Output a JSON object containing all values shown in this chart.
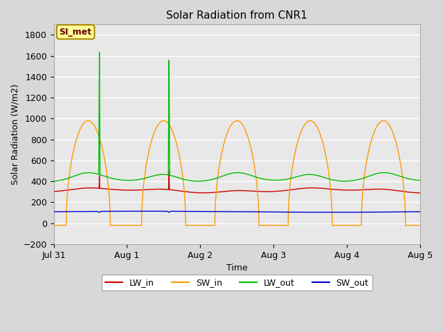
{
  "title": "Solar Radiation from CNR1",
  "xlabel": "Time",
  "ylabel": "Solar Radiation (W/m2)",
  "ylim": [
    -200,
    1900
  ],
  "yticks": [
    -200,
    0,
    200,
    400,
    600,
    800,
    1000,
    1200,
    1400,
    1600,
    1800
  ],
  "background_color": "#e8e8e8",
  "grid_color": "#ffffff",
  "legend_labels": [
    "LW_in",
    "SW_in",
    "LW_out",
    "SW_out"
  ],
  "legend_colors": [
    "#cc0000",
    "#ff9900",
    "#00bb00",
    "#0000cc"
  ],
  "annotation_text": "SI_met",
  "annotation_bg": "#ffff99",
  "annotation_border": "#aa8800",
  "annotation_text_color": "#660000",
  "x_start": 0,
  "x_end": 5.0,
  "xtick_positions": [
    0,
    1,
    2,
    3,
    4,
    5
  ],
  "xtick_labels": [
    "Jul 31",
    "Aug 1",
    "Aug 2",
    "Aug 3",
    "Aug 4",
    "Aug 5"
  ],
  "figsize": [
    6.4,
    4.8
  ],
  "dpi": 100
}
